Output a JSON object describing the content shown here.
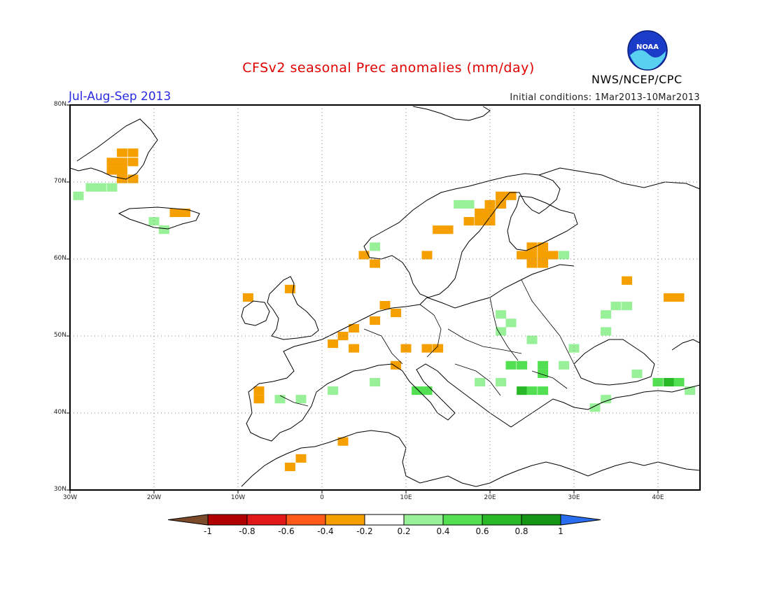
{
  "title": "CFSv2 seasonal Prec anomalies (mm/day)",
  "period": "Jul-Aug-Sep 2013",
  "initial_conditions": "Initial conditions: 1Mar2013-10Mar2013",
  "agency": "NWS/NCEP/CPC",
  "logo_text": "NOAA",
  "colors": {
    "title": "#e00000",
    "period": "#2a2ae0",
    "neg_1": "#7a4a2a",
    "neg_08": "#b00000",
    "neg_06": "#e01818",
    "neg_04": "#ff5a1a",
    "neg_02": "#f5a000",
    "neutral": "#ffffff",
    "pos_02": "#98f098",
    "pos_04": "#52e052",
    "pos_06": "#28b828",
    "pos_08": "#149614",
    "pos_1": "#2a6ef0"
  },
  "map": {
    "lon_range": [
      -30,
      45
    ],
    "lat_range": [
      30,
      80
    ],
    "lat_ticks": [
      "30N",
      "40N",
      "50N",
      "60N",
      "70N",
      "80N"
    ],
    "lon_ticks": [
      "30W",
      "20W",
      "10W",
      "0",
      "10E",
      "20E",
      "30E",
      "40E"
    ],
    "grid": "dotted",
    "anomaly_cells": [
      {
        "lon": -23.8,
        "lat": 73.8,
        "value": -0.3
      },
      {
        "lon": -22.5,
        "lat": 73.8,
        "value": -0.3
      },
      {
        "lon": -25.0,
        "lat": 72.6,
        "value": -0.3
      },
      {
        "lon": -23.8,
        "lat": 72.6,
        "value": -0.3
      },
      {
        "lon": -22.5,
        "lat": 72.6,
        "value": -0.3
      },
      {
        "lon": -25.0,
        "lat": 71.5,
        "value": -0.3
      },
      {
        "lon": -23.8,
        "lat": 71.5,
        "value": -0.3
      },
      {
        "lon": -23.8,
        "lat": 70.4,
        "value": -0.3
      },
      {
        "lon": -22.5,
        "lat": 70.4,
        "value": -0.3
      },
      {
        "lon": -27.5,
        "lat": 69.3,
        "value": 0.3
      },
      {
        "lon": -26.3,
        "lat": 69.3,
        "value": 0.3
      },
      {
        "lon": -25.0,
        "lat": 69.3,
        "value": 0.3
      },
      {
        "lon": -29.0,
        "lat": 68.2,
        "value": 0.3
      },
      {
        "lon": -17.5,
        "lat": 66.0,
        "value": -0.3
      },
      {
        "lon": -16.3,
        "lat": 66.0,
        "value": -0.3
      },
      {
        "lon": -20.0,
        "lat": 64.9,
        "value": 0.3
      },
      {
        "lon": -18.8,
        "lat": 63.8,
        "value": 0.3
      },
      {
        "lon": 16.3,
        "lat": 67.1,
        "value": 0.3
      },
      {
        "lon": 17.5,
        "lat": 67.1,
        "value": 0.3
      },
      {
        "lon": 21.3,
        "lat": 68.2,
        "value": -0.3
      },
      {
        "lon": 22.5,
        "lat": 68.2,
        "value": -0.3
      },
      {
        "lon": 20.0,
        "lat": 67.1,
        "value": -0.3
      },
      {
        "lon": 21.3,
        "lat": 67.1,
        "value": -0.3
      },
      {
        "lon": 18.8,
        "lat": 66.0,
        "value": -0.3
      },
      {
        "lon": 20.0,
        "lat": 66.0,
        "value": -0.3
      },
      {
        "lon": 17.5,
        "lat": 64.9,
        "value": -0.3
      },
      {
        "lon": 18.8,
        "lat": 64.9,
        "value": -0.3
      },
      {
        "lon": 20.0,
        "lat": 64.9,
        "value": -0.3
      },
      {
        "lon": 13.8,
        "lat": 63.8,
        "value": -0.3
      },
      {
        "lon": 15.0,
        "lat": 63.8,
        "value": -0.3
      },
      {
        "lon": 25.0,
        "lat": 61.6,
        "value": -0.3
      },
      {
        "lon": 26.3,
        "lat": 61.6,
        "value": -0.3
      },
      {
        "lon": 23.8,
        "lat": 60.5,
        "value": -0.3
      },
      {
        "lon": 25.0,
        "lat": 60.5,
        "value": -0.3
      },
      {
        "lon": 26.3,
        "lat": 60.5,
        "value": -0.3
      },
      {
        "lon": 27.5,
        "lat": 60.5,
        "value": -0.3
      },
      {
        "lon": 28.8,
        "lat": 60.5,
        "value": 0.3
      },
      {
        "lon": 25.0,
        "lat": 59.4,
        "value": -0.3
      },
      {
        "lon": 26.3,
        "lat": 59.4,
        "value": -0.3
      },
      {
        "lon": 6.3,
        "lat": 61.6,
        "value": 0.3
      },
      {
        "lon": 5.0,
        "lat": 60.5,
        "value": -0.3
      },
      {
        "lon": 6.3,
        "lat": 59.4,
        "value": -0.3
      },
      {
        "lon": 12.5,
        "lat": 60.5,
        "value": -0.3
      },
      {
        "lon": 36.3,
        "lat": 57.2,
        "value": -0.3
      },
      {
        "lon": 41.3,
        "lat": 55.0,
        "value": -0.3
      },
      {
        "lon": 42.5,
        "lat": 55.0,
        "value": -0.3
      },
      {
        "lon": 35.0,
        "lat": 53.9,
        "value": 0.3
      },
      {
        "lon": 36.3,
        "lat": 53.9,
        "value": 0.3
      },
      {
        "lon": 33.8,
        "lat": 52.8,
        "value": 0.3
      },
      {
        "lon": 33.8,
        "lat": 50.6,
        "value": 0.3
      },
      {
        "lon": 21.3,
        "lat": 52.8,
        "value": 0.3
      },
      {
        "lon": 22.5,
        "lat": 51.7,
        "value": 0.3
      },
      {
        "lon": 21.3,
        "lat": 50.6,
        "value": 0.3
      },
      {
        "lon": 25.0,
        "lat": 49.5,
        "value": 0.3
      },
      {
        "lon": 30.0,
        "lat": 48.4,
        "value": 0.3
      },
      {
        "lon": 22.5,
        "lat": 46.2,
        "value": 0.5
      },
      {
        "lon": 23.8,
        "lat": 46.2,
        "value": 0.5
      },
      {
        "lon": 26.3,
        "lat": 46.2,
        "value": 0.5
      },
      {
        "lon": 28.8,
        "lat": 46.2,
        "value": 0.3
      },
      {
        "lon": 26.3,
        "lat": 45.1,
        "value": 0.5
      },
      {
        "lon": 18.8,
        "lat": 44.0,
        "value": 0.3
      },
      {
        "lon": 21.3,
        "lat": 44.0,
        "value": 0.3
      },
      {
        "lon": 23.8,
        "lat": 42.9,
        "value": 0.7
      },
      {
        "lon": 25.0,
        "lat": 42.9,
        "value": 0.5
      },
      {
        "lon": 26.3,
        "lat": 42.9,
        "value": 0.5
      },
      {
        "lon": 11.3,
        "lat": 42.9,
        "value": 0.5
      },
      {
        "lon": 12.5,
        "lat": 42.9,
        "value": 0.5
      },
      {
        "lon": 3.8,
        "lat": 48.4,
        "value": -0.3
      },
      {
        "lon": 10.0,
        "lat": 48.4,
        "value": -0.3
      },
      {
        "lon": 12.5,
        "lat": 48.4,
        "value": -0.3
      },
      {
        "lon": 13.8,
        "lat": 48.4,
        "value": -0.3
      },
      {
        "lon": 8.8,
        "lat": 46.2,
        "value": -0.3
      },
      {
        "lon": 6.3,
        "lat": 44.0,
        "value": 0.3
      },
      {
        "lon": 7.5,
        "lat": 54.0,
        "value": -0.3
      },
      {
        "lon": 8.8,
        "lat": 53.0,
        "value": -0.3
      },
      {
        "lon": 6.3,
        "lat": 52.0,
        "value": -0.3
      },
      {
        "lon": 3.8,
        "lat": 51.0,
        "value": -0.3
      },
      {
        "lon": 2.5,
        "lat": 50.0,
        "value": -0.3
      },
      {
        "lon": 1.3,
        "lat": 49.0,
        "value": -0.3
      },
      {
        "lon": -8.8,
        "lat": 55.0,
        "value": -0.3
      },
      {
        "lon": -3.8,
        "lat": 56.1,
        "value": -0.3
      },
      {
        "lon": -7.5,
        "lat": 42.9,
        "value": -0.3
      },
      {
        "lon": -7.5,
        "lat": 41.8,
        "value": -0.3
      },
      {
        "lon": -5.0,
        "lat": 41.8,
        "value": 0.3
      },
      {
        "lon": -2.5,
        "lat": 41.8,
        "value": 0.3
      },
      {
        "lon": 1.3,
        "lat": 42.9,
        "value": 0.3
      },
      {
        "lon": 2.5,
        "lat": 36.3,
        "value": -0.3
      },
      {
        "lon": -2.5,
        "lat": 34.1,
        "value": -0.3
      },
      {
        "lon": -3.8,
        "lat": 33.0,
        "value": -0.3
      },
      {
        "lon": 37.5,
        "lat": 45.1,
        "value": 0.3
      },
      {
        "lon": 40.0,
        "lat": 44.0,
        "value": 0.5
      },
      {
        "lon": 41.3,
        "lat": 44.0,
        "value": 0.7
      },
      {
        "lon": 42.5,
        "lat": 44.0,
        "value": 0.5
      },
      {
        "lon": 43.8,
        "lat": 42.9,
        "value": 0.3
      },
      {
        "lon": 32.5,
        "lat": 40.7,
        "value": 0.3
      },
      {
        "lon": 33.8,
        "lat": 41.8,
        "value": 0.3
      }
    ]
  },
  "colorbar": {
    "labels": [
      "-1",
      "-0.8",
      "-0.6",
      "-0.4",
      "-0.2",
      "0.2",
      "0.4",
      "0.6",
      "0.8",
      "1"
    ]
  }
}
